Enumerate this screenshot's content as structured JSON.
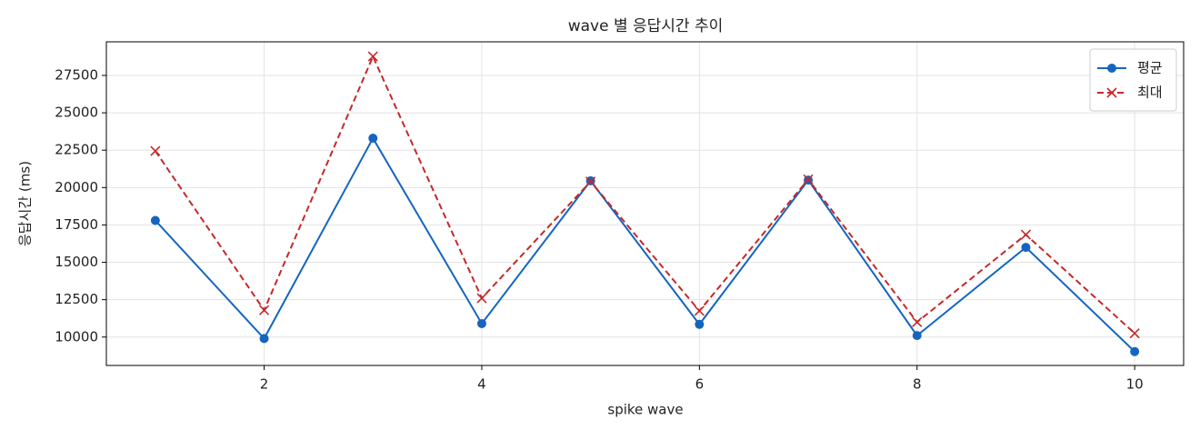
{
  "chart_data": {
    "type": "line",
    "title": "wave 별 응답시간 추이",
    "xlabel": "spike wave",
    "ylabel": "응답시간 (ms)",
    "x": [
      1,
      2,
      3,
      4,
      5,
      6,
      7,
      8,
      9,
      10
    ],
    "series": [
      {
        "name": "평균",
        "color": "#1565c0",
        "marker": "circle",
        "dash": "solid",
        "values": [
          17800,
          9900,
          23300,
          10900,
          20450,
          10850,
          20500,
          10100,
          16000,
          9030
        ]
      },
      {
        "name": "최대",
        "color": "#c62828",
        "marker": "x",
        "dash": "dashed",
        "values": [
          22450,
          11800,
          28770,
          12600,
          20400,
          11750,
          20550,
          11000,
          16850,
          10250
        ]
      }
    ],
    "xlim": [
      0.55,
      10.45
    ],
    "xticks": [
      2,
      4,
      6,
      8,
      10
    ],
    "ylim": [
      8100,
      29750
    ],
    "yticks": [
      10000,
      12500,
      15000,
      17500,
      20000,
      22500,
      25000,
      27500
    ],
    "grid": true,
    "legend": "upper-right"
  }
}
